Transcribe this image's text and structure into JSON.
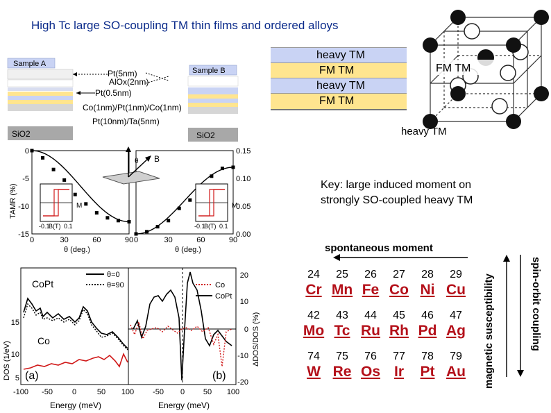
{
  "title": "High Tc large SO-coupling TM thin films and ordered alloys",
  "layer_stack": {
    "rows": [
      "heavy TM",
      "FM TM",
      "heavy TM",
      "FM TM"
    ],
    "colors": [
      "#c9d3f4",
      "#ffe58f",
      "#c9d3f4",
      "#ffe58f"
    ]
  },
  "lattice": {
    "fm_label": "FM TM",
    "heavy_label": "heavy TM"
  },
  "samples": {
    "sample_a": "Sample A",
    "sample_b": "Sample B",
    "pt5": "Pt(5nm)",
    "alox": "AlOx(2nm)",
    "pt05": "Pt(0.5nm)",
    "co_pt_co": "Co(1nm)/Pt(1nm)/Co(1nm)",
    "pt_ta": "Pt(10nm)/Ta(5nm)",
    "sio2_a": "SiO2",
    "sio2_b": "SiO2"
  },
  "tamr": {
    "ylabel": "TAMR (%)",
    "xlabel_left": "θ (deg.)",
    "xlabel_right": "θ (deg.)",
    "yticks_left": [
      "0",
      "-5",
      "-10",
      "-15"
    ],
    "yticks_right": [
      "0.15",
      "0.10",
      "0.05",
      "0.00"
    ],
    "xticks_left": [
      "0",
      "30",
      "60",
      "90"
    ],
    "xticks_right": [
      "0",
      "30",
      "60",
      "90"
    ],
    "inset_ylabel": "M",
    "inset_xlabel": "B(T)",
    "inset_xticks": [
      "-0.1",
      "0.1"
    ],
    "b_label": "B",
    "theta_label": "θ"
  },
  "chart_data": {
    "type": "scatter",
    "title": "",
    "xlabel": "θ (deg.)",
    "ylabel": "TAMR (%)",
    "xlim": [
      0,
      90
    ],
    "ylim": [
      -15,
      0
    ],
    "series": [
      {
        "x": [
          0,
          10,
          20,
          30,
          40,
          50,
          60,
          70,
          80,
          90
        ],
        "y": [
          0,
          -1.3,
          -3.4,
          -5.3,
          -7.9,
          -9.6,
          -11.2,
          -12.1,
          -12.6,
          -12.8
        ]
      }
    ],
    "right_panel": {
      "xlim": [
        0,
        90
      ],
      "ylim": [
        0,
        0.15
      ],
      "series": [
        {
          "x": [
            0,
            10,
            20,
            30,
            40,
            50,
            60,
            70,
            80,
            90
          ],
          "y": [
            0.0,
            0.004,
            0.013,
            0.024,
            0.046,
            0.061,
            0.085,
            0.104,
            0.118,
            0.12
          ]
        }
      ]
    }
  },
  "dos": {
    "ylabel": "DOS (1/eV)",
    "xlabel_left": "Energy (meV)",
    "xlabel_right": "Energy (meV)",
    "yticks": [
      "15",
      "10",
      "5"
    ],
    "xticks_left": [
      "-100",
      "-50",
      "0",
      "50",
      "100"
    ],
    "xticks_right": [
      "-50",
      "0",
      "50",
      "100"
    ],
    "ryticks": [
      "20",
      "10",
      "0",
      "-10",
      "-20"
    ],
    "rylabel": "ΔDOS/DOS (%)",
    "copt_label": "CoPt",
    "co_label": "Co",
    "legend_theta0": "θ=0",
    "legend_theta90": "θ=90",
    "legend_co": "Co",
    "legend_copt": "CoPt",
    "panel_a": "(a)",
    "panel_b": "(b)",
    "colors": {
      "co": "#d01818"
    }
  },
  "key_line1": "Key: large induced moment on",
  "key_line2": "strongly SO-coupled heavy TM",
  "spontaneous_moment": "spontaneous moment",
  "magnetic_susceptibility": "magnetic susceptibility",
  "spin_orbit_coupling": "spin-orbit coupling",
  "elements": [
    [
      {
        "num": "24",
        "sym": "Cr"
      },
      {
        "num": "25",
        "sym": "Mn"
      },
      {
        "num": "26",
        "sym": "Fe"
      },
      {
        "num": "27",
        "sym": "Co"
      },
      {
        "num": "28",
        "sym": "Ni"
      },
      {
        "num": "29",
        "sym": "Cu"
      }
    ],
    [
      {
        "num": "42",
        "sym": "Mo"
      },
      {
        "num": "43",
        "sym": "Tc"
      },
      {
        "num": "44",
        "sym": "Ru"
      },
      {
        "num": "45",
        "sym": "Rh"
      },
      {
        "num": "46",
        "sym": "Pd"
      },
      {
        "num": "47",
        "sym": "Ag"
      }
    ],
    [
      {
        "num": "74",
        "sym": "W"
      },
      {
        "num": "75",
        "sym": "Re"
      },
      {
        "num": "76",
        "sym": "Os"
      },
      {
        "num": "77",
        "sym": "Ir"
      },
      {
        "num": "78",
        "sym": "Pt"
      },
      {
        "num": "79",
        "sym": "Au"
      }
    ]
  ]
}
